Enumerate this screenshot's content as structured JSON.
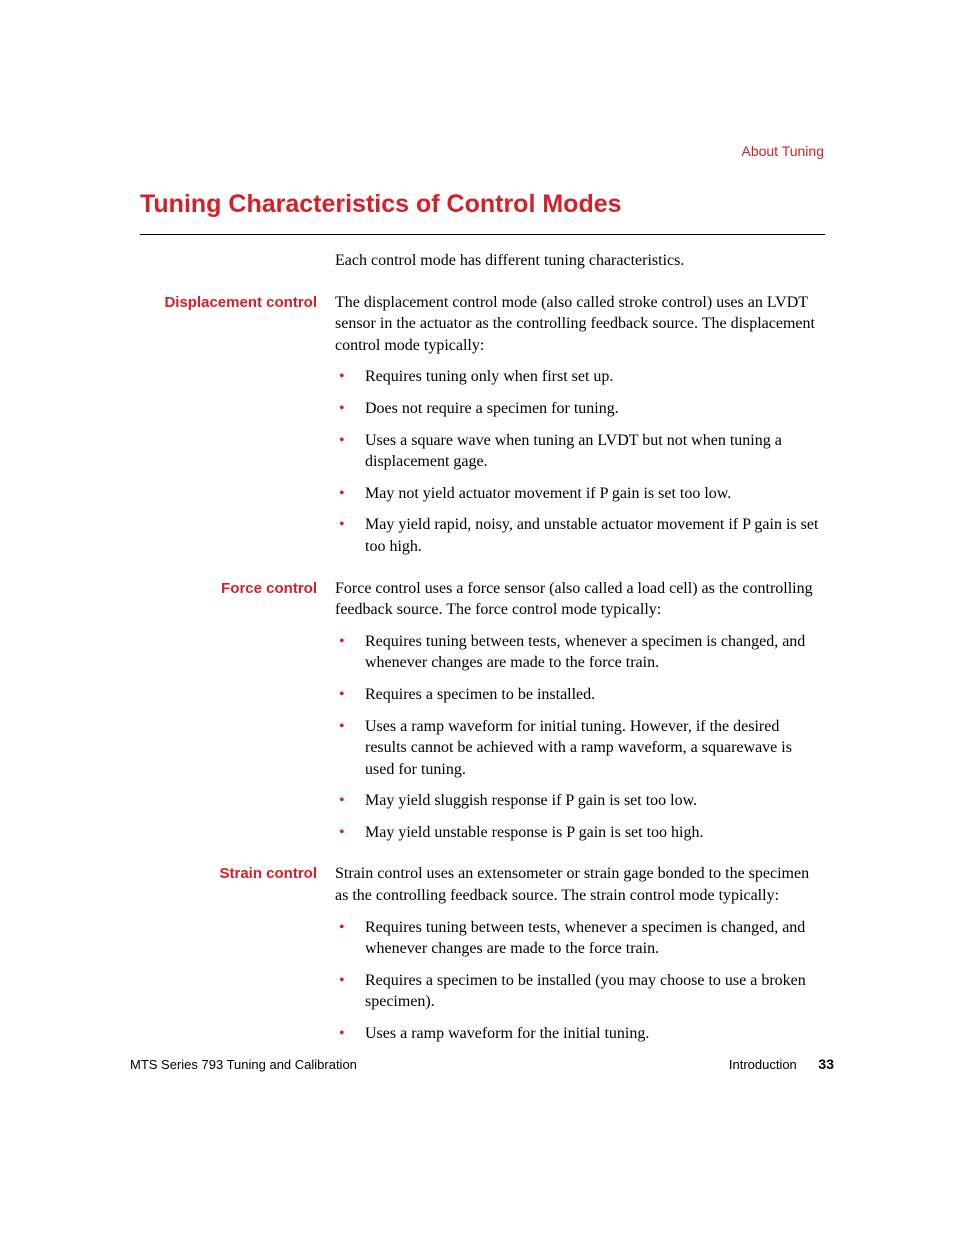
{
  "colors": {
    "accent": "#d22128",
    "text": "#000000",
    "background": "#ffffff"
  },
  "typography": {
    "body_font": "Times New Roman",
    "heading_font": "Arial",
    "body_size_pt": 12,
    "title_size_pt": 19,
    "label_size_pt": 11
  },
  "header": {
    "running": "About Tuning"
  },
  "title": "Tuning Characteristics of Control Modes",
  "intro": "Each control mode has different tuning characteristics.",
  "sections": [
    {
      "label": "Displacement control",
      "para": "The displacement control mode (also called stroke control) uses an LVDT sensor in the actuator as the controlling feedback source. The displacement control mode typically:",
      "bullets": [
        "Requires tuning only when first set up.",
        "Does not require a specimen for tuning.",
        "Uses a square wave when tuning an LVDT but not when tuning a displacement gage.",
        "May not yield actuator movement if P gain is set too low.",
        "May yield rapid, noisy, and unstable actuator movement if P gain is set too high."
      ]
    },
    {
      "label": "Force control",
      "para": "Force control uses a force sensor (also called a load cell) as the controlling feedback source. The force control mode typically:",
      "bullets": [
        "Requires tuning between tests, whenever a specimen is changed, and whenever changes are made to the force train.",
        "Requires a specimen to be installed.",
        "Uses a ramp waveform for initial tuning. However, if the desired results cannot be achieved with a ramp waveform, a squarewave is used for tuning.",
        "May yield sluggish response if P gain is set too low.",
        "May yield unstable response is P gain is set too high."
      ]
    },
    {
      "label": "Strain control",
      "para": "Strain control uses an extensometer or strain gage bonded to the specimen as the controlling feedback source. The strain control mode typically:",
      "bullets": [
        "Requires tuning between tests, whenever a specimen is changed, and whenever changes are made to the force train.",
        "Requires a specimen to be installed (you may choose to use a broken specimen).",
        "Uses a ramp waveform for the initial tuning."
      ]
    }
  ],
  "footer": {
    "left": "MTS Series 793 Tuning and Calibration",
    "section": "Introduction",
    "page": "33"
  }
}
